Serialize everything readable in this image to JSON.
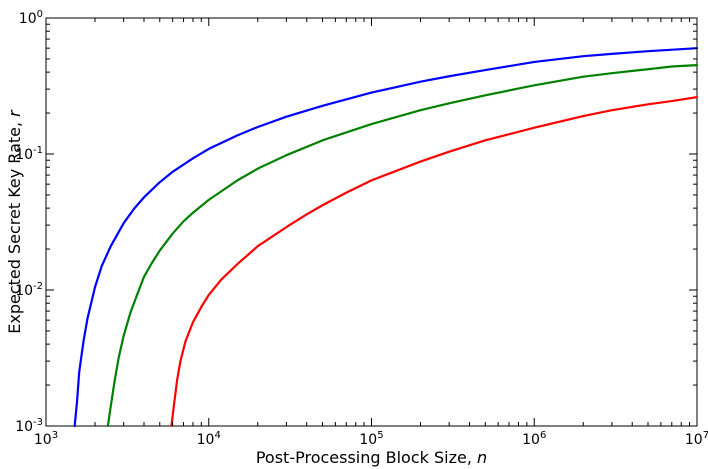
{
  "chart_data": {
    "type": "line",
    "xscale": "log",
    "yscale": "log",
    "xlim": [
      1000,
      10000000
    ],
    "ylim": [
      0.001,
      1
    ],
    "grid": false,
    "legend": "none",
    "xlabel": {
      "text": "Post-Processing Block Size, ",
      "var": "n"
    },
    "ylabel": {
      "text": "Expected Secret Key Rate, ",
      "var": "r"
    },
    "xticks": [
      {
        "value": 1000,
        "base": "10",
        "exp": "3"
      },
      {
        "value": 10000,
        "base": "10",
        "exp": "4"
      },
      {
        "value": 100000,
        "base": "10",
        "exp": "5"
      },
      {
        "value": 1000000,
        "base": "10",
        "exp": "6"
      },
      {
        "value": 10000000,
        "base": "10",
        "exp": "7"
      }
    ],
    "yticks": [
      {
        "value": 0.001,
        "base": "10",
        "exp": "-3"
      },
      {
        "value": 0.01,
        "base": "10",
        "exp": "-2"
      },
      {
        "value": 0.1,
        "base": "10",
        "exp": "-1"
      },
      {
        "value": 1,
        "base": "10",
        "exp": "0"
      }
    ],
    "series": [
      {
        "color": "#0000ff",
        "points": [
          [
            1500,
            0.001
          ],
          [
            1550,
            0.0015
          ],
          [
            1600,
            0.0025
          ],
          [
            1700,
            0.0042
          ],
          [
            1800,
            0.0062
          ],
          [
            2000,
            0.0105
          ],
          [
            2200,
            0.015
          ],
          [
            2500,
            0.021
          ],
          [
            3000,
            0.031
          ],
          [
            3500,
            0.04
          ],
          [
            4000,
            0.048
          ],
          [
            5000,
            0.062
          ],
          [
            6000,
            0.074
          ],
          [
            8000,
            0.093
          ],
          [
            10000,
            0.109
          ],
          [
            15000,
            0.137
          ],
          [
            20000,
            0.158
          ],
          [
            30000,
            0.188
          ],
          [
            50000,
            0.226
          ],
          [
            100000,
            0.283
          ],
          [
            200000,
            0.34
          ],
          [
            300000,
            0.373
          ],
          [
            500000,
            0.414
          ],
          [
            1000000,
            0.475
          ],
          [
            2000000,
            0.524
          ],
          [
            3000000,
            0.545
          ],
          [
            5000000,
            0.57
          ],
          [
            10000000,
            0.6
          ]
        ]
      },
      {
        "color": "#008000",
        "points": [
          [
            2400,
            0.001
          ],
          [
            2500,
            0.0014
          ],
          [
            2650,
            0.0022
          ],
          [
            2800,
            0.0032
          ],
          [
            3000,
            0.0046
          ],
          [
            3300,
            0.0068
          ],
          [
            3600,
            0.009
          ],
          [
            4000,
            0.0125
          ],
          [
            4500,
            0.016
          ],
          [
            5000,
            0.0195
          ],
          [
            6000,
            0.026
          ],
          [
            7000,
            0.032
          ],
          [
            8000,
            0.037
          ],
          [
            10000,
            0.046
          ],
          [
            15000,
            0.064
          ],
          [
            20000,
            0.078
          ],
          [
            30000,
            0.098
          ],
          [
            50000,
            0.126
          ],
          [
            100000,
            0.166
          ],
          [
            200000,
            0.21
          ],
          [
            300000,
            0.236
          ],
          [
            500000,
            0.27
          ],
          [
            1000000,
            0.32
          ],
          [
            2000000,
            0.37
          ],
          [
            3000000,
            0.393
          ],
          [
            5000000,
            0.42
          ],
          [
            7000000,
            0.44
          ],
          [
            10000000,
            0.45
          ]
        ]
      },
      {
        "color": "#ff0000",
        "points": [
          [
            5900,
            0.001
          ],
          [
            6100,
            0.0014
          ],
          [
            6400,
            0.0022
          ],
          [
            6700,
            0.003
          ],
          [
            7200,
            0.0042
          ],
          [
            8000,
            0.0058
          ],
          [
            9000,
            0.0075
          ],
          [
            10000,
            0.0092
          ],
          [
            12000,
            0.012
          ],
          [
            15000,
            0.0155
          ],
          [
            20000,
            0.021
          ],
          [
            30000,
            0.029
          ],
          [
            40000,
            0.036
          ],
          [
            50000,
            0.042
          ],
          [
            70000,
            0.052
          ],
          [
            100000,
            0.064
          ],
          [
            200000,
            0.088
          ],
          [
            300000,
            0.104
          ],
          [
            500000,
            0.126
          ],
          [
            1000000,
            0.156
          ],
          [
            2000000,
            0.19
          ],
          [
            3000000,
            0.21
          ],
          [
            5000000,
            0.232
          ],
          [
            7000000,
            0.245
          ],
          [
            10000000,
            0.262
          ]
        ]
      }
    ]
  }
}
